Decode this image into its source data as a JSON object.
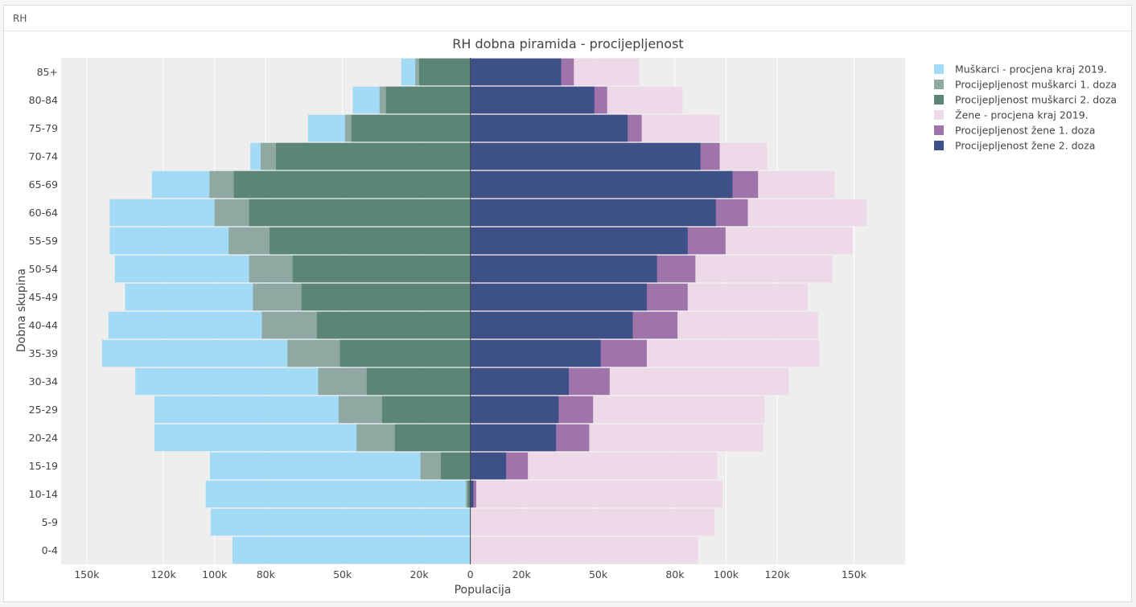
{
  "panel": {
    "title": "RH"
  },
  "chart_data": {
    "type": "bar",
    "orientation": "horizontal",
    "barmode": "overlay",
    "title": "RH dobna piramida - procijepljenost",
    "xlabel": "Populacija",
    "ylabel": "Dobna skupina",
    "categories": [
      "0-4",
      "5-9",
      "10-14",
      "15-19",
      "20-24",
      "25-29",
      "30-34",
      "35-39",
      "40-44",
      "45-49",
      "50-54",
      "55-59",
      "60-64",
      "65-69",
      "70-74",
      "75-79",
      "80-84",
      "85+"
    ],
    "xlim": [
      -160000,
      170000
    ],
    "x_ticks": [
      {
        "value": -150000,
        "label": "150k"
      },
      {
        "value": -120000,
        "label": "120k"
      },
      {
        "value": -100000,
        "label": "100k"
      },
      {
        "value": -80000,
        "label": "80k"
      },
      {
        "value": -50000,
        "label": "50k"
      },
      {
        "value": -20000,
        "label": "20k"
      },
      {
        "value": 0,
        "label": "0"
      },
      {
        "value": 20000,
        "label": "20k"
      },
      {
        "value": 50000,
        "label": "50k"
      },
      {
        "value": 80000,
        "label": "80k"
      },
      {
        "value": 100000,
        "label": "100k"
      },
      {
        "value": 120000,
        "label": "120k"
      },
      {
        "value": 150000,
        "label": "150k"
      }
    ],
    "grid": true,
    "legend_position": "right",
    "series": [
      {
        "name": "Muškarci - procjena kraj 2019.",
        "side": "left",
        "color": "#a3daf5",
        "values": [
          93000,
          101500,
          103500,
          101800,
          123500,
          123500,
          131000,
          144000,
          141500,
          135000,
          139000,
          141000,
          141000,
          124500,
          86000,
          63500,
          46000,
          27000
        ]
      },
      {
        "name": "Procijepljenost muškarci 1. doza",
        "side": "left",
        "color": "#8fa8a1",
        "values": [
          0,
          0,
          1700,
          19500,
          44500,
          51500,
          59500,
          71500,
          81500,
          85000,
          86500,
          94500,
          100000,
          102000,
          82000,
          49000,
          35500,
          21500
        ]
      },
      {
        "name": "Procijepljenost muškarci 2. doza",
        "side": "left",
        "color": "#5b8676",
        "values": [
          0,
          0,
          1000,
          11500,
          29500,
          34500,
          40500,
          51000,
          60000,
          66000,
          69500,
          78500,
          86500,
          92500,
          76000,
          46500,
          33000,
          20000
        ]
      },
      {
        "name": "Žene - procjena kraj 2019.",
        "side": "right",
        "color": "#eed9e8",
        "values": [
          89000,
          95500,
          98500,
          96500,
          114500,
          115000,
          124500,
          136500,
          136000,
          132000,
          141500,
          149500,
          155000,
          142500,
          116000,
          97500,
          83000,
          66000
        ]
      },
      {
        "name": "Procijepljenost žene 1. doza",
        "side": "right",
        "color": "#9e74aa",
        "values": [
          0,
          0,
          2300,
          22500,
          46500,
          48000,
          54500,
          69000,
          81000,
          85000,
          88000,
          99800,
          108500,
          112500,
          97500,
          67000,
          53500,
          40500
        ]
      },
      {
        "name": "Procijepljenost žene 2. doza",
        "side": "right",
        "color": "#3e5088",
        "values": [
          0,
          0,
          1200,
          14000,
          33500,
          34500,
          38500,
          51000,
          63500,
          69000,
          73000,
          85000,
          96000,
          102500,
          90000,
          61500,
          48500,
          35500
        ]
      }
    ]
  }
}
